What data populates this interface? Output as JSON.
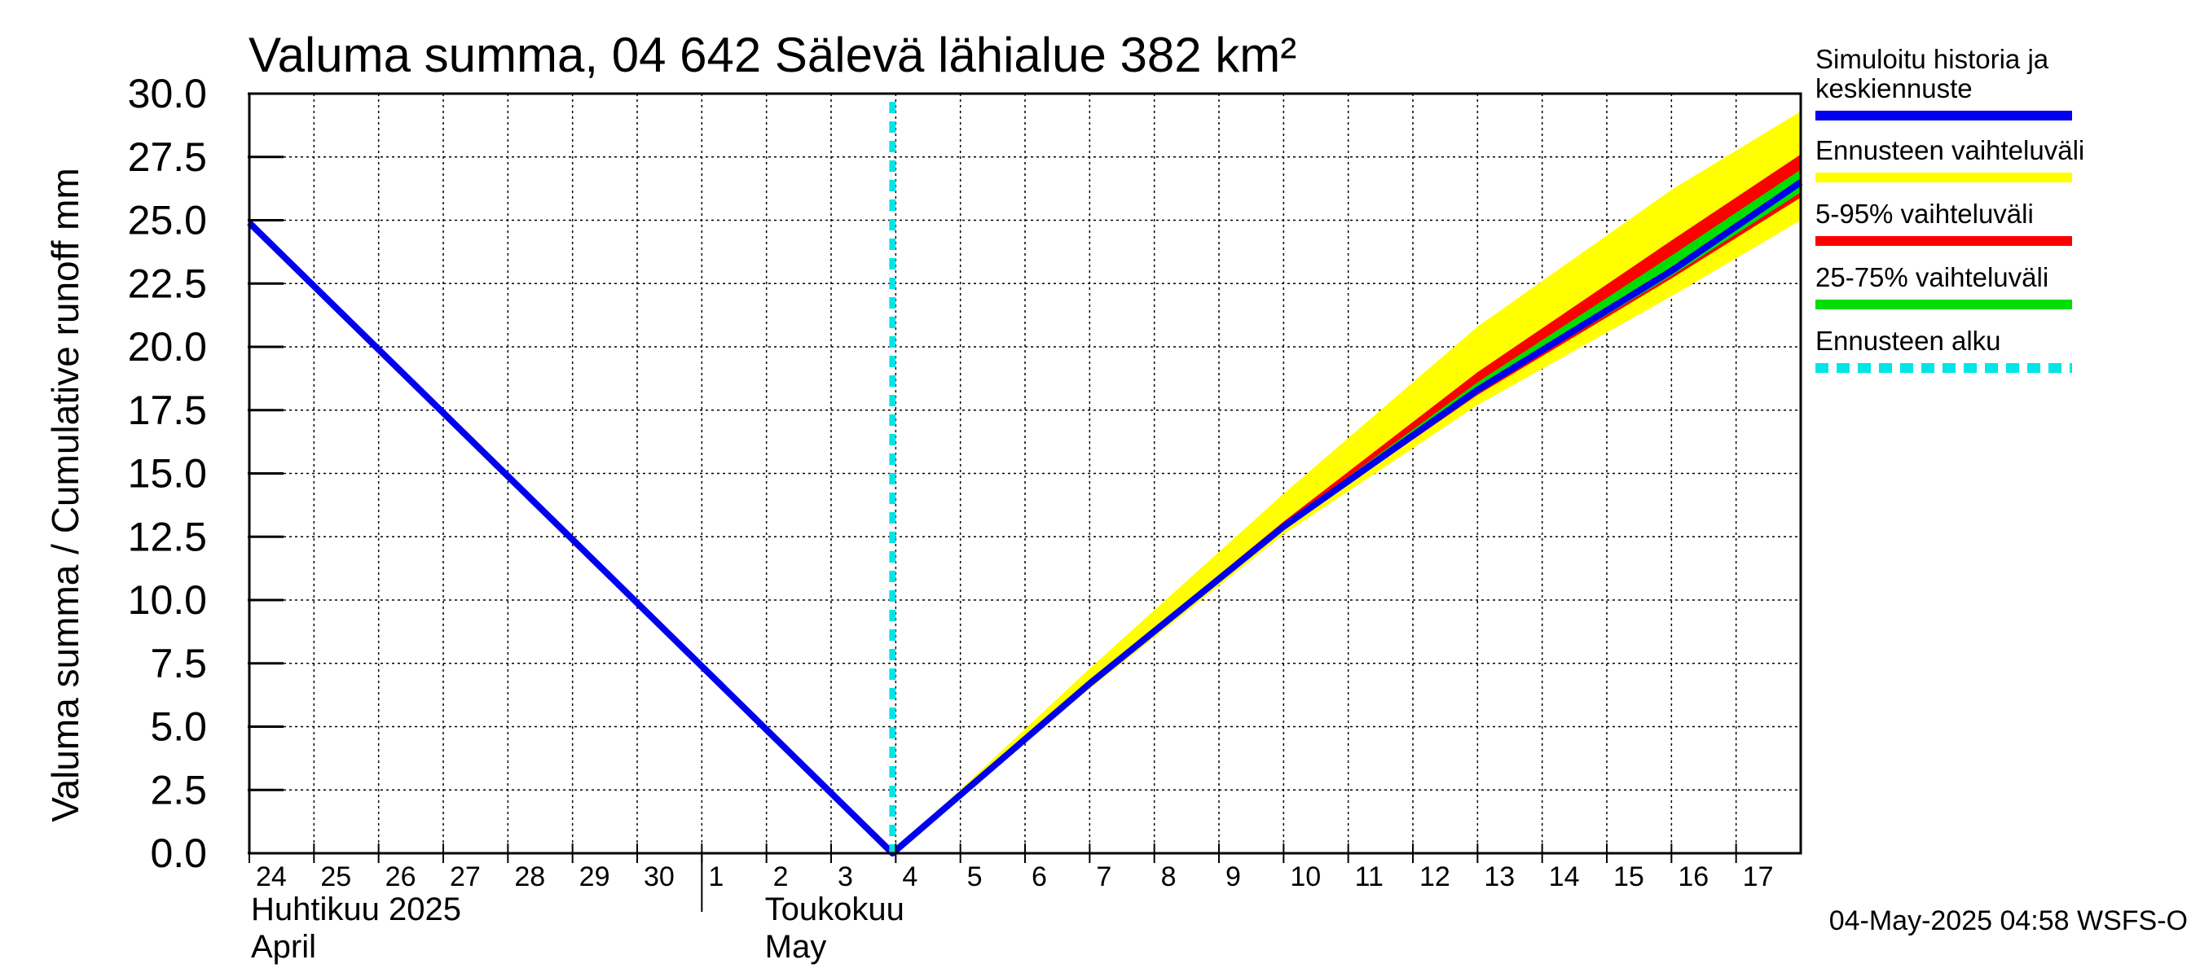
{
  "chart_data": {
    "type": "line",
    "title": "Valuma summa, 04 642 Sälevä lähialue 382 km²",
    "ylabel": "Valuma summa / Cumulative runoff    mm",
    "ylim": [
      0,
      30
    ],
    "y_ticks": [
      "0.0",
      "2.5",
      "5.0",
      "7.5",
      "10.0",
      "12.5",
      "15.0",
      "17.5",
      "20.0",
      "22.5",
      "25.0",
      "27.5",
      "30.0"
    ],
    "x_start_day": 24,
    "x_range_days": [
      0,
      24
    ],
    "x_tick_labels": [
      "24",
      "25",
      "26",
      "27",
      "28",
      "29",
      "30",
      "1",
      "2",
      "3",
      "4",
      "5",
      "6",
      "7",
      "8",
      "9",
      "10",
      "11",
      "12",
      "13",
      "14",
      "15",
      "16",
      "17"
    ],
    "months": [
      {
        "line1": "Huhtikuu  2025",
        "line2": "April"
      },
      {
        "line1": "Toukokuu",
        "line2": "May"
      }
    ],
    "month_boundary_day": 7,
    "forecast_start_day": 9.95,
    "series": [
      {
        "name": "Simuloitu historia ja keskiennuste",
        "color": "#0000ee",
        "x": [
          0,
          9.95,
          13,
          16,
          19,
          22,
          24
        ],
        "y": [
          24.9,
          0.0,
          6.7,
          12.9,
          18.3,
          23.0,
          26.5
        ]
      },
      {
        "name": "Ennusteen vaihteluväli",
        "color": "#ffff00",
        "x_upper": [
          13,
          16,
          19,
          22,
          24
        ],
        "upper": [
          7.3,
          14.2,
          20.8,
          26.2,
          29.3
        ],
        "x_lower": [
          13,
          16,
          19,
          22,
          24
        ],
        "lower": [
          6.5,
          12.6,
          17.7,
          22.0,
          25.0
        ]
      },
      {
        "name": "5-95% vaihteluväli",
        "color": "#ff0000",
        "x_upper": [
          13,
          16,
          19,
          22,
          24
        ],
        "upper": [
          6.8,
          13.1,
          19.0,
          24.2,
          27.6
        ],
        "x_lower": [
          13,
          16,
          19,
          22,
          24
        ],
        "lower": [
          6.6,
          12.8,
          18.1,
          22.7,
          25.9
        ]
      },
      {
        "name": "25-75% vaihteluväli",
        "color": "#00dd00",
        "x_upper": [
          13,
          16,
          19,
          22,
          24
        ],
        "upper": [
          6.75,
          13.0,
          18.6,
          23.6,
          27.0
        ],
        "x_lower": [
          13,
          16,
          19,
          22,
          24
        ],
        "lower": [
          6.65,
          12.85,
          18.2,
          22.8,
          26.1
        ]
      }
    ],
    "legend": [
      {
        "label": "Simuloitu historia ja\nkeskiennuste",
        "color": "#0000ee",
        "style": "solid"
      },
      {
        "label": "Ennusteen vaihteluväli",
        "color": "#ffff00",
        "style": "solid"
      },
      {
        "label": "5-95% vaihteluväli",
        "color": "#ff0000",
        "style": "solid"
      },
      {
        "label": "25-75% vaihteluväli",
        "color": "#00dd00",
        "style": "solid"
      },
      {
        "label": "Ennusteen alku",
        "color": "#00e5e5",
        "style": "dashed"
      }
    ],
    "footer": "04-May-2025 04:58 WSFS-O"
  }
}
